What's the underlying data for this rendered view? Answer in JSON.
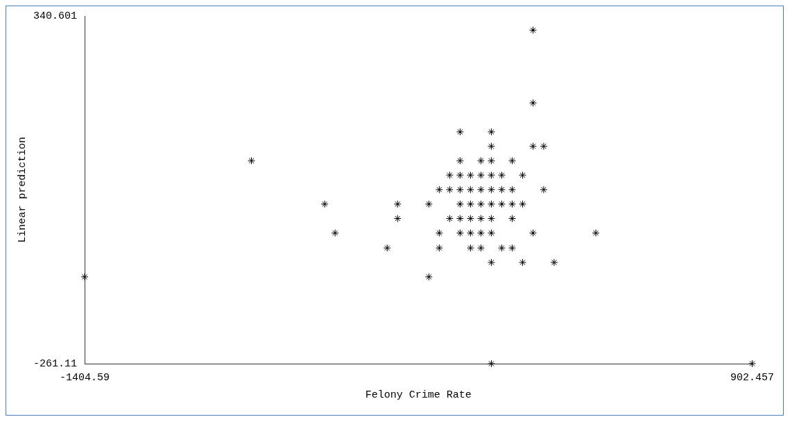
{
  "chart_data": {
    "type": "scatter",
    "xlabel": "Felony Crime Rate",
    "ylabel": "Linear prediction",
    "x": [
      145,
      145,
      -107,
      1,
      1,
      145,
      182,
      -828,
      -107,
      -35,
      1,
      73,
      -143,
      -107,
      -71,
      -35,
      1,
      37,
      109,
      -179,
      -143,
      -107,
      -71,
      -35,
      1,
      37,
      73,
      182,
      -575,
      -323,
      -215,
      -107,
      -71,
      -35,
      1,
      37,
      73,
      109,
      -323,
      -143,
      -107,
      -71,
      -35,
      1,
      73,
      -539,
      -179,
      -107,
      -71,
      -35,
      1,
      145,
      362,
      -359,
      -179,
      -71,
      -35,
      37,
      73,
      1,
      109,
      218,
      -1404.59,
      -215,
      1,
      902.457
    ],
    "values": [
      316,
      190,
      140,
      140,
      115,
      115,
      115,
      90,
      90,
      90,
      90,
      90,
      65,
      65,
      65,
      65,
      65,
      65,
      65,
      40,
      40,
      40,
      40,
      40,
      40,
      40,
      40,
      40,
      15,
      15,
      15,
      15,
      15,
      15,
      15,
      15,
      15,
      15,
      -10,
      -10,
      -10,
      -10,
      -10,
      -10,
      -10,
      -35,
      -35,
      -35,
      -35,
      -35,
      -35,
      -35,
      -35,
      -61,
      -61,
      -61,
      -61,
      -61,
      -61,
      -86,
      -86,
      -86,
      -111,
      -111,
      -261.11,
      -261.11
    ],
    "color": "#000000",
    "marker": "cross",
    "xlim": [
      -1404.59,
      902.457
    ],
    "xticks": [
      -1404.59,
      902.457
    ],
    "ylim": [
      -261.11,
      340.601
    ],
    "yticks": [
      -261.11,
      340.601
    ],
    "grid": false,
    "legend": false
  }
}
